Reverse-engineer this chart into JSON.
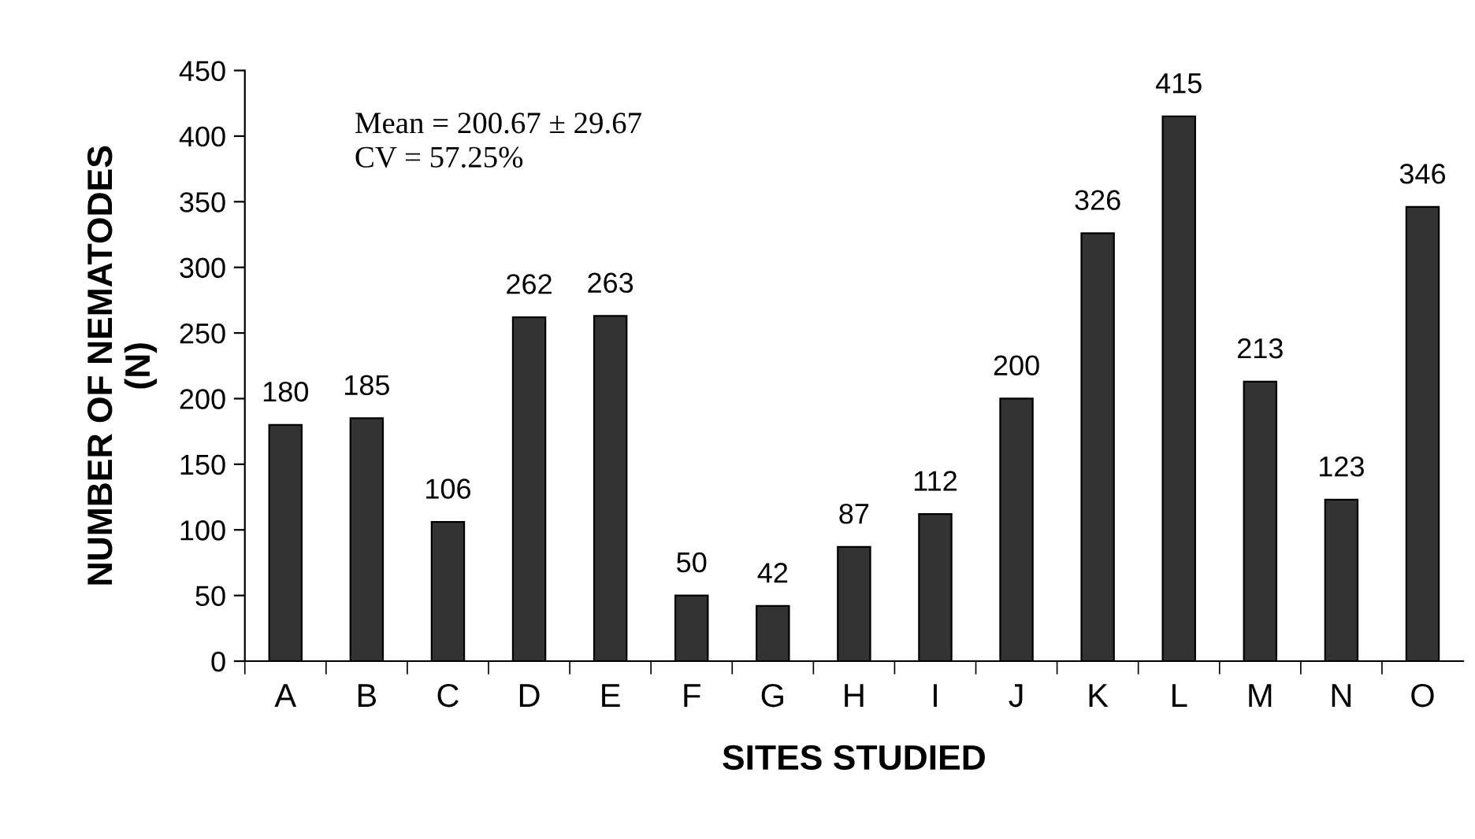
{
  "chart_data": {
    "type": "bar",
    "categories": [
      "A",
      "B",
      "C",
      "D",
      "E",
      "F",
      "G",
      "H",
      "I",
      "J",
      "K",
      "L",
      "M",
      "N",
      "O"
    ],
    "values": [
      180,
      185,
      106,
      262,
      263,
      50,
      42,
      87,
      112,
      200,
      326,
      415,
      213,
      123,
      346
    ],
    "color": "#333333",
    "xlabel": "SITES STUDIED",
    "ylabel": "NUMBER OF NEMATODES\n(N)",
    "ylim": [
      0,
      450
    ],
    "yticks": [
      0,
      50,
      100,
      150,
      200,
      250,
      300,
      350,
      400,
      450
    ],
    "data_labels": true,
    "grid": false,
    "legend": false,
    "annotations": [
      "Mean = 200.67 ± 29.67\nCV = 57.25%"
    ]
  }
}
